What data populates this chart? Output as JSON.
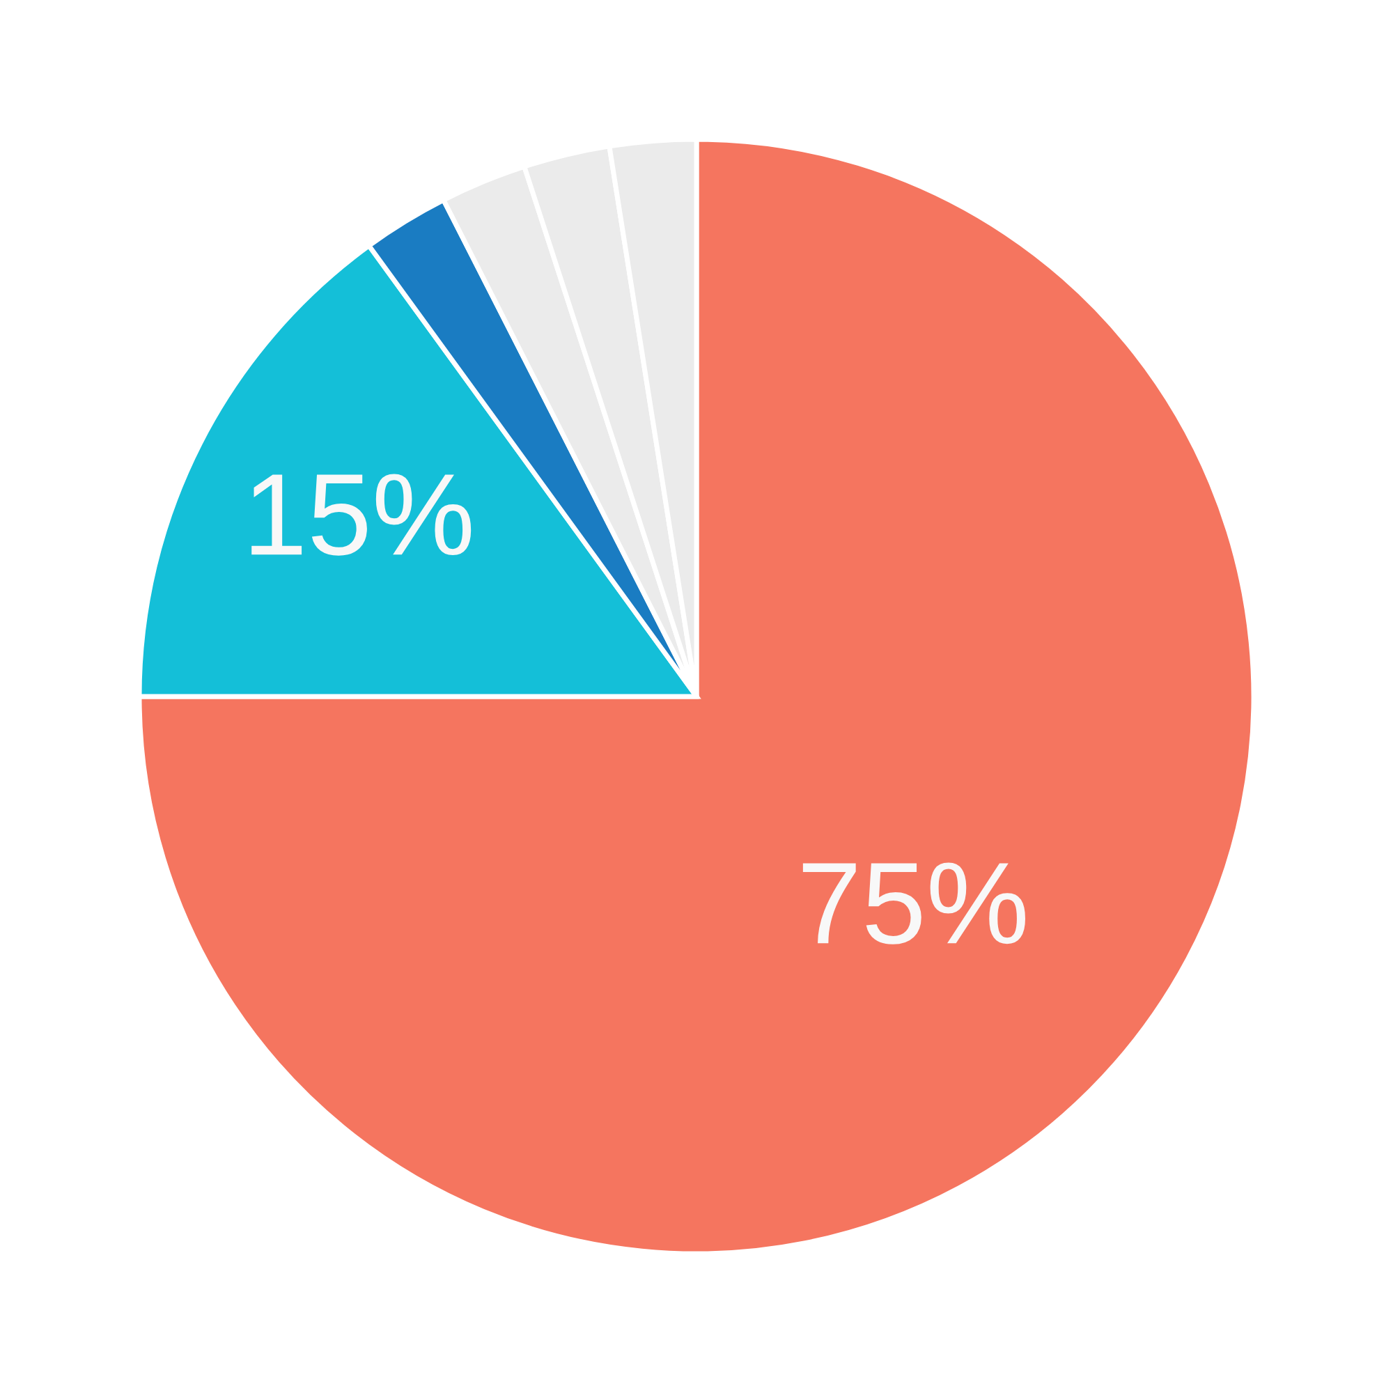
{
  "chart_data": {
    "type": "pie",
    "categories": [
      null,
      null,
      null,
      null,
      null,
      null
    ],
    "values": [
      75,
      15,
      2.5,
      2.5,
      2.5,
      2.5
    ],
    "colors": [
      "#f5755f",
      "#14bfd8",
      "#1a7cc2",
      "#ebebeb",
      "#ebebeb",
      "#ebebeb"
    ],
    "value_labels": [
      "75%",
      "15%",
      null,
      null,
      null,
      null
    ]
  }
}
